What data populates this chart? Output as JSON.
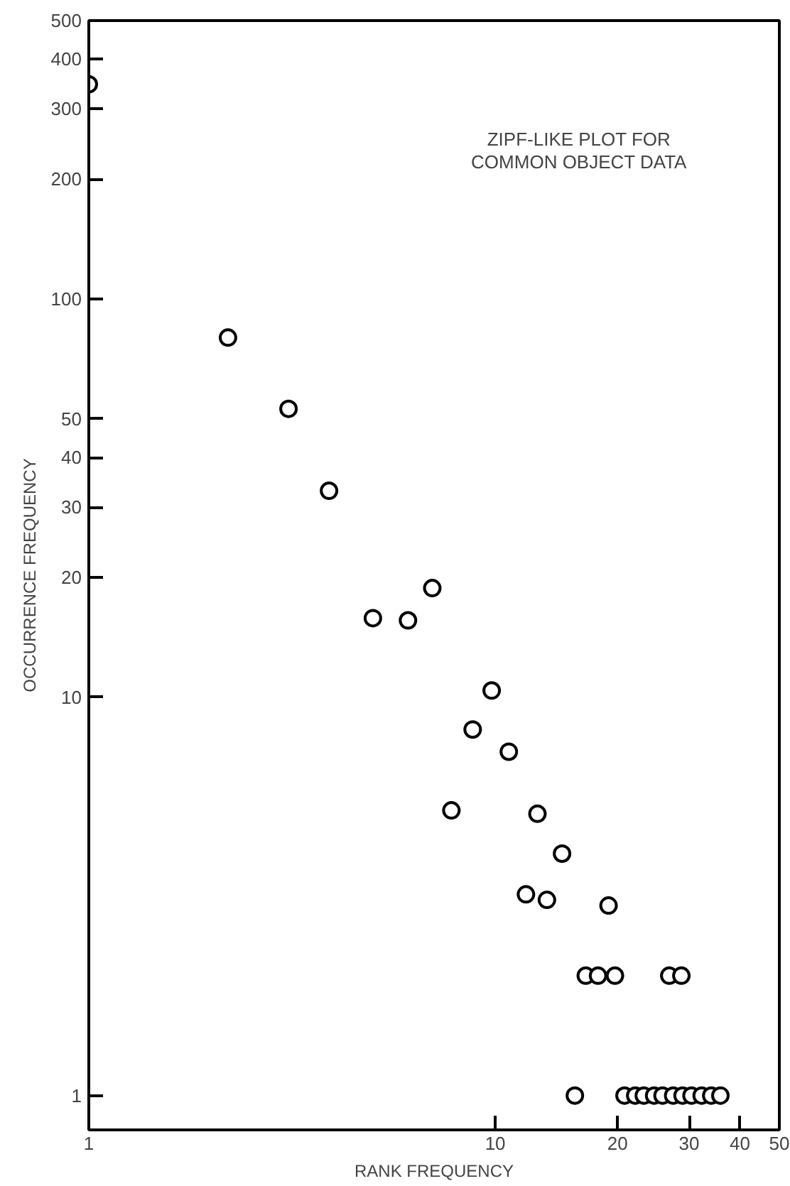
{
  "chart_data": {
    "type": "scatter",
    "xlabel": "RANK FREQUENCY",
    "ylabel": "OCCURRENCE FREQUENCY",
    "annotations": [
      "ZIPF-LIKE PLOT FOR\nCOMMON OBJECT DATA"
    ],
    "x": [
      1,
      2.2,
      3.1,
      3.9,
      5,
      6.1,
      7,
      7.8,
      8.8,
      9.8,
      10.8,
      11.9,
      12.7,
      13.4,
      14.6,
      15.7,
      16.7,
      17.9,
      19,
      19.7,
      20.8,
      22.1,
      23.2,
      24.6,
      25.8,
      26.8,
      27.4,
      28.7,
      28.9,
      30.4,
      32.2,
      34,
      35.8
    ],
    "values": [
      346,
      80,
      53,
      33,
      15.8,
      15.6,
      18.8,
      5.2,
      8.3,
      10.4,
      7.3,
      3.2,
      5.1,
      3.1,
      4.05,
      1,
      2,
      2,
      3,
      2,
      1,
      1,
      1,
      1,
      1,
      2,
      1,
      2,
      1,
      1,
      1,
      1,
      1
    ],
    "color": "#000000",
    "marker": "circle",
    "log": "xy",
    "grid": false,
    "xlim": [
      1,
      50
    ],
    "ylim": [
      0.82,
      500
    ],
    "xticks": [
      1,
      10,
      20,
      30,
      40,
      50
    ],
    "yticks": [
      1,
      10,
      20,
      30,
      40,
      50,
      100,
      200,
      300,
      400,
      500
    ]
  }
}
